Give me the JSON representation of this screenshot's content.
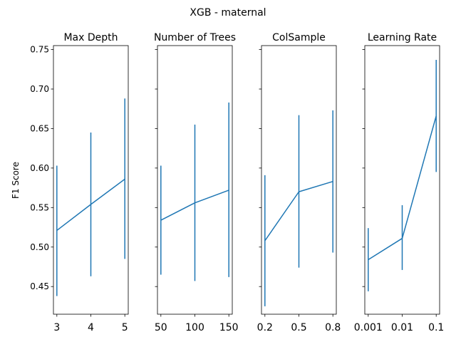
{
  "suptitle": "XGB - maternal",
  "ylabel": "F1 Score",
  "ylim": [
    0.415,
    0.755
  ],
  "yticks": [
    0.45,
    0.5,
    0.55,
    0.6,
    0.65,
    0.7,
    0.75
  ],
  "ytick_labels": [
    "0.45",
    "0.50",
    "0.55",
    "0.60",
    "0.65",
    "0.70",
    "0.75"
  ],
  "colors": {
    "series": "#1f77b4",
    "axes": "#000000",
    "background": "#ffffff"
  },
  "chart_data": [
    {
      "type": "line",
      "title": "Max Depth",
      "categories": [
        "3",
        "4",
        "5"
      ],
      "values": [
        0.521,
        0.554,
        0.586
      ],
      "err_low": [
        0.438,
        0.463,
        0.485
      ],
      "err_high": [
        0.603,
        0.645,
        0.688
      ]
    },
    {
      "type": "line",
      "title": "Number of Trees",
      "categories": [
        "50",
        "100",
        "150"
      ],
      "values": [
        0.534,
        0.556,
        0.572
      ],
      "err_low": [
        0.465,
        0.457,
        0.462
      ],
      "err_high": [
        0.603,
        0.655,
        0.683
      ]
    },
    {
      "type": "line",
      "title": "ColSample",
      "categories": [
        "0.2",
        "0.5",
        "0.8"
      ],
      "values": [
        0.508,
        0.57,
        0.583
      ],
      "err_low": [
        0.425,
        0.474,
        0.493
      ],
      "err_high": [
        0.591,
        0.667,
        0.673
      ]
    },
    {
      "type": "line",
      "title": "Learning Rate",
      "categories": [
        "0.001",
        "0.01",
        "0.1"
      ],
      "values": [
        0.484,
        0.511,
        0.666
      ],
      "err_low": [
        0.444,
        0.471,
        0.595
      ],
      "err_high": [
        0.524,
        0.553,
        0.737
      ]
    }
  ]
}
